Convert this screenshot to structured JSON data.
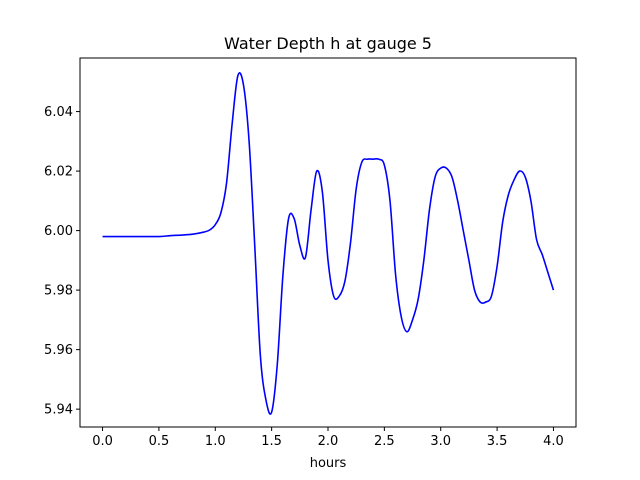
{
  "chart_data": {
    "type": "line",
    "title": "Water Depth h at gauge 5",
    "xlabel": "hours",
    "ylabel": "",
    "xlim": [
      -0.2,
      4.2
    ],
    "ylim": [
      5.934,
      6.058
    ],
    "xticks": [
      0.0,
      0.5,
      1.0,
      1.5,
      2.0,
      2.5,
      3.0,
      3.5,
      4.0
    ],
    "xtick_labels": [
      "0.0",
      "0.5",
      "1.0",
      "1.5",
      "2.0",
      "2.5",
      "3.0",
      "3.5",
      "4.0"
    ],
    "yticks": [
      5.94,
      5.96,
      5.98,
      6.0,
      6.02,
      6.04
    ],
    "ytick_labels": [
      "5.94",
      "5.96",
      "5.98",
      "6.00",
      "6.02",
      "6.04"
    ],
    "grid": false,
    "legend": "none",
    "series": [
      {
        "color": "#0000ff",
        "x": [
          0.0,
          0.3,
          0.5,
          0.6,
          0.7,
          0.8,
          0.9,
          0.95,
          1.0,
          1.05,
          1.1,
          1.15,
          1.2,
          1.25,
          1.3,
          1.35,
          1.4,
          1.45,
          1.5,
          1.55,
          1.6,
          1.65,
          1.7,
          1.75,
          1.8,
          1.85,
          1.9,
          1.95,
          2.0,
          2.05,
          2.1,
          2.15,
          2.2,
          2.25,
          2.3,
          2.35,
          2.4,
          2.45,
          2.5,
          2.55,
          2.6,
          2.65,
          2.7,
          2.75,
          2.8,
          2.85,
          2.9,
          2.95,
          3.0,
          3.05,
          3.1,
          3.15,
          3.2,
          3.25,
          3.3,
          3.35,
          3.4,
          3.45,
          3.5,
          3.55,
          3.6,
          3.65,
          3.7,
          3.75,
          3.8,
          3.85,
          3.9,
          3.95,
          4.0
        ],
        "y": [
          5.998,
          5.998,
          5.998,
          5.9983,
          5.9985,
          5.9988,
          5.9995,
          6.0002,
          6.002,
          6.006,
          6.016,
          6.036,
          6.052,
          6.049,
          6.03,
          5.995,
          5.958,
          5.943,
          5.939,
          5.955,
          5.985,
          6.004,
          6.004,
          5.995,
          5.991,
          6.007,
          6.02,
          6.013,
          5.99,
          5.978,
          5.978,
          5.983,
          5.996,
          6.014,
          6.023,
          6.024,
          6.024,
          6.024,
          6.022,
          6.01,
          5.985,
          5.971,
          5.966,
          5.97,
          5.977,
          5.99,
          6.007,
          6.018,
          6.021,
          6.021,
          6.018,
          6.01,
          6.0,
          5.99,
          5.98,
          5.976,
          5.976,
          5.978,
          5.988,
          6.003,
          6.012,
          6.017,
          6.02,
          6.018,
          6.01,
          5.997,
          5.992,
          5.986,
          5.98
        ]
      }
    ]
  }
}
